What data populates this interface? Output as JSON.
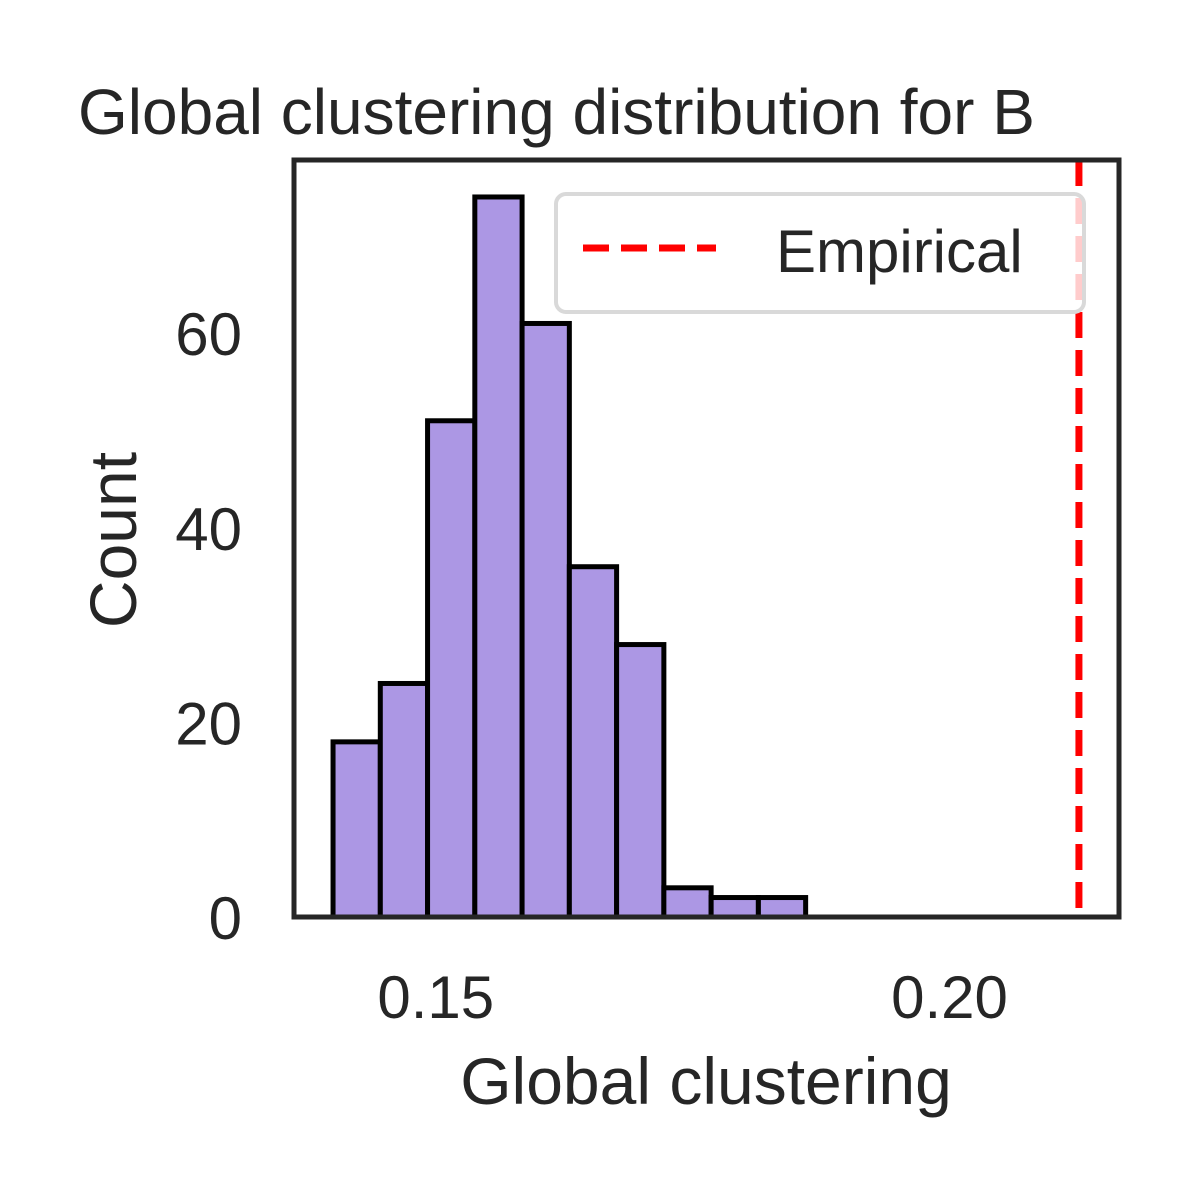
{
  "chart_data": {
    "type": "bar",
    "title": "Global clustering distribution for B",
    "xlabel": "Global clustering",
    "ylabel": "Count",
    "xlim": [
      0.1362,
      0.2165
    ],
    "ylim": [
      0,
      77.8
    ],
    "xticks": [
      0.15,
      0.2
    ],
    "xtick_labels": [
      "0.15",
      "0.20"
    ],
    "yticks": [
      0,
      20,
      40,
      60
    ],
    "ytick_labels": [
      "0",
      "20",
      "40",
      "60"
    ],
    "bins": [
      {
        "x0": 0.14,
        "x1": 0.1446,
        "count": 18
      },
      {
        "x0": 0.1446,
        "x1": 0.1492,
        "count": 24
      },
      {
        "x0": 0.1492,
        "x1": 0.1538,
        "count": 51
      },
      {
        "x0": 0.1538,
        "x1": 0.1584,
        "count": 74
      },
      {
        "x0": 0.1584,
        "x1": 0.163,
        "count": 61
      },
      {
        "x0": 0.163,
        "x1": 0.1676,
        "count": 36
      },
      {
        "x0": 0.1676,
        "x1": 0.1722,
        "count": 28
      },
      {
        "x0": 0.1722,
        "x1": 0.1768,
        "count": 3
      },
      {
        "x0": 0.1768,
        "x1": 0.1814,
        "count": 2
      },
      {
        "x0": 0.1814,
        "x1": 0.186,
        "count": 2
      }
    ],
    "bar_color": "#ac97e4",
    "bar_edge_color": "#000000",
    "empirical": {
      "name": "Empirical",
      "x": 0.2126,
      "color": "#ff0000"
    },
    "legend": {
      "position": "top-right",
      "entries": [
        "Empirical"
      ]
    },
    "grid": false
  }
}
